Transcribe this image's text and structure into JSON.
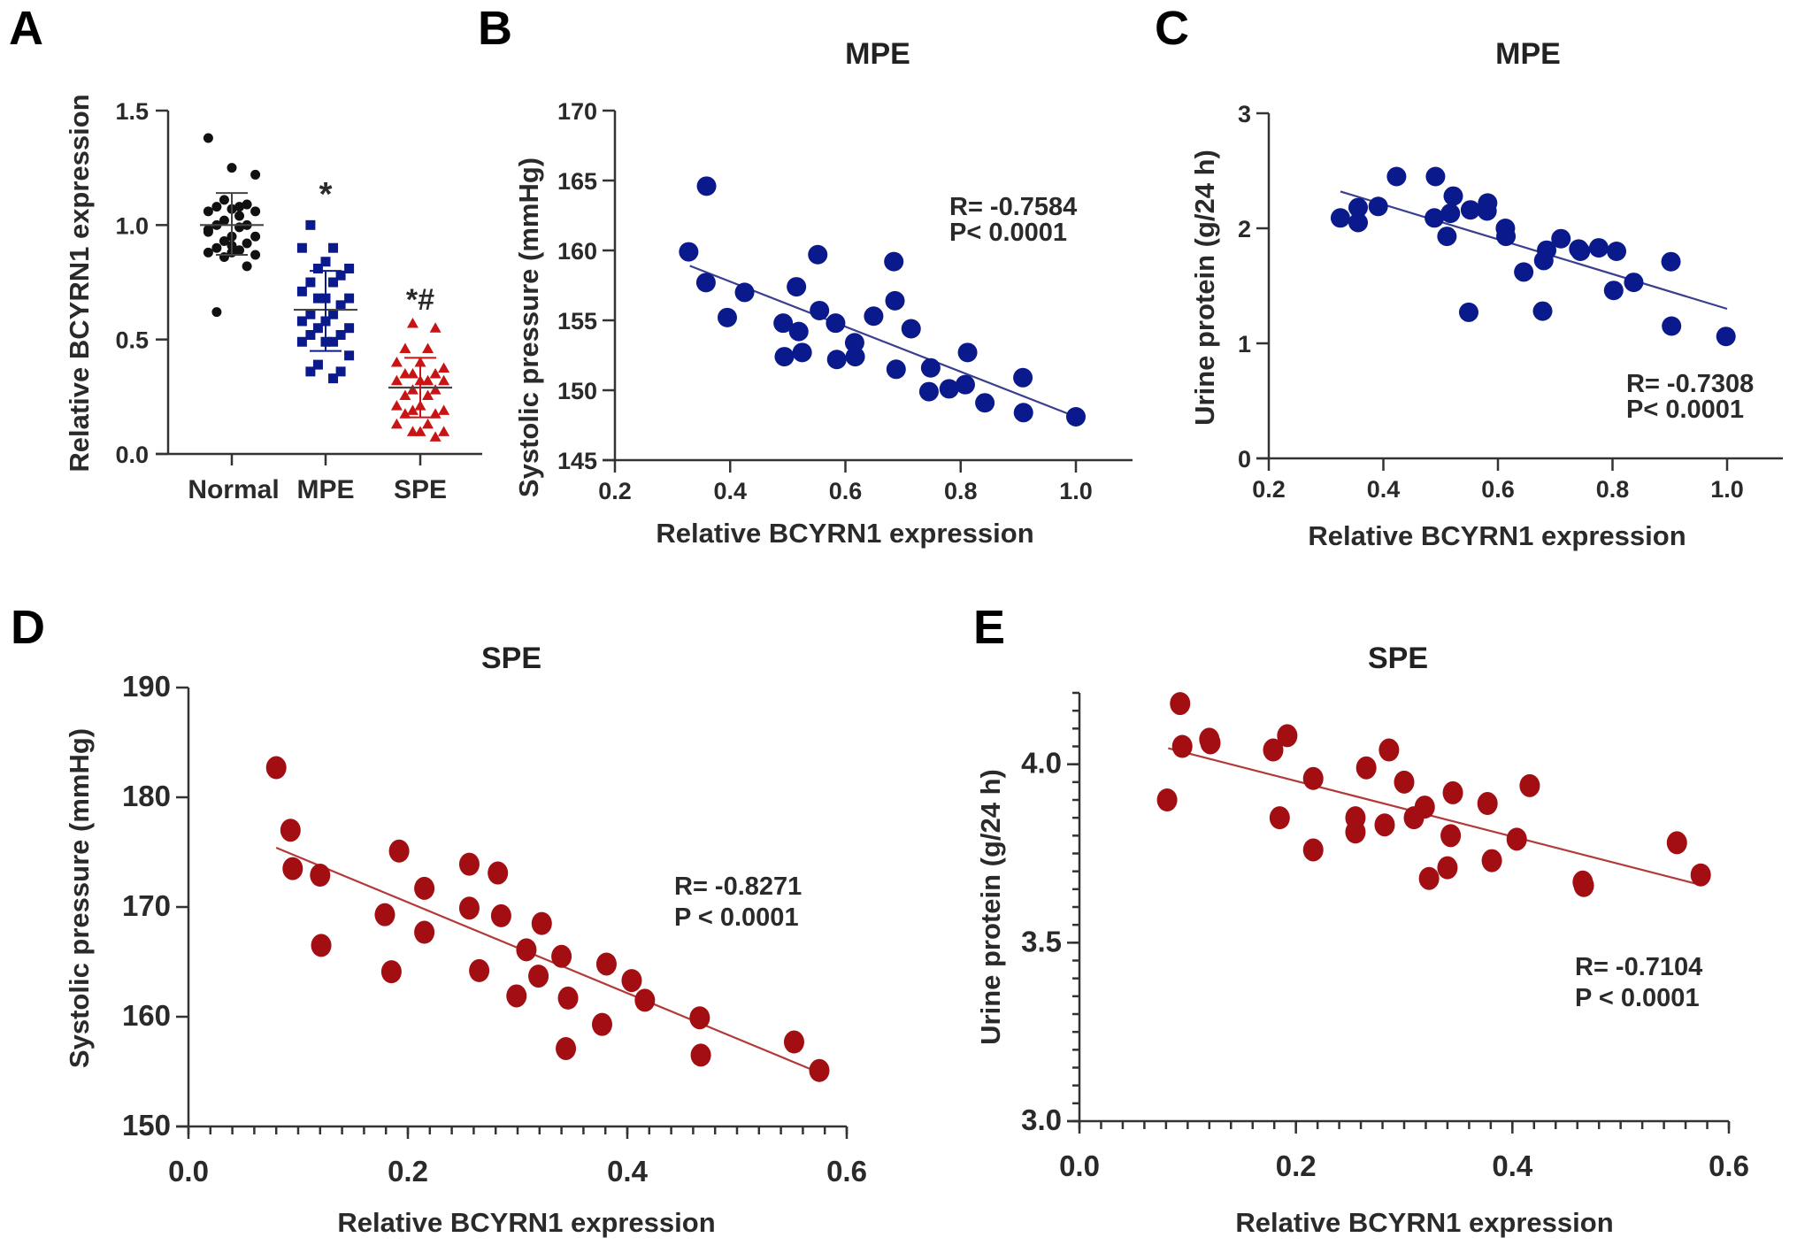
{
  "figure": {
    "colors": {
      "normal": "#111111",
      "mpe": "#0a1a8c",
      "spe_scatter_panel_a": "#c81414",
      "spe": "#a30e12",
      "mpe_fit": "#3a3f8f",
      "spe_fit": "#b23a3a",
      "axis": "#333333"
    }
  },
  "chart_data": [
    {
      "panel": "A",
      "type": "scatter",
      "subtype": "dot-plot-with-mean-sd",
      "title": "",
      "xlabel": "",
      "ylabel": "Relative BCYRN1 expression",
      "ylim": [
        0,
        1.5
      ],
      "yticks": [
        "0.0",
        "0.5",
        "1.0",
        "1.5"
      ],
      "categories": [
        "Normal",
        "MPE",
        "SPE"
      ],
      "annotations": [
        "",
        "*",
        "*#"
      ],
      "grid": false,
      "series": [
        {
          "name": "Normal",
          "marker": "circle",
          "mean": 1.0,
          "sd_low": 0.87,
          "sd_high": 1.14,
          "values": [
            1.38,
            1.25,
            1.22,
            1.11,
            1.09,
            1.08,
            1.08,
            1.06,
            1.07,
            1.06,
            1.02,
            1.0,
            1.0,
            0.99,
            0.98,
            0.95,
            0.95,
            0.93,
            0.92,
            0.9,
            0.89,
            0.88,
            0.88,
            0.87,
            0.86,
            0.82,
            0.62,
            1.04,
            0.97,
            0.91
          ]
        },
        {
          "name": "MPE",
          "marker": "square",
          "mean": 0.63,
          "sd_low": 0.45,
          "sd_high": 0.8,
          "values": [
            1.0,
            0.9,
            0.9,
            0.84,
            0.81,
            0.81,
            0.78,
            0.75,
            0.75,
            0.71,
            0.68,
            0.68,
            0.68,
            0.65,
            0.61,
            0.61,
            0.58,
            0.58,
            0.55,
            0.55,
            0.52,
            0.52,
            0.49,
            0.49,
            0.49,
            0.43,
            0.39,
            0.36,
            0.36,
            0.33
          ]
        },
        {
          "name": "SPE",
          "marker": "triangle",
          "mean": 0.29,
          "sd_low": 0.16,
          "sd_high": 0.42,
          "values": [
            0.57,
            0.55,
            0.46,
            0.46,
            0.4,
            0.4,
            0.375,
            0.35,
            0.35,
            0.35,
            0.32,
            0.32,
            0.32,
            0.32,
            0.28,
            0.28,
            0.255,
            0.255,
            0.21,
            0.21,
            0.19,
            0.19,
            0.175,
            0.175,
            0.13,
            0.13,
            0.097,
            0.097,
            0.097,
            0.074
          ]
        }
      ]
    },
    {
      "panel": "B",
      "type": "scatter",
      "title": "MPE",
      "xlabel": "Relative BCYRN1 expression",
      "ylabel": "Systolic pressure (mmHg)",
      "xlim": [
        0.2,
        1.0
      ],
      "ylim": [
        145,
        170
      ],
      "xticks": [
        "0.2",
        "0.4",
        "0.6",
        "0.8",
        "1.0"
      ],
      "yticks": [
        "145",
        "150",
        "155",
        "160",
        "165",
        "170"
      ],
      "stats": [
        "R= -0.7584",
        "P< 0.0001"
      ],
      "stats_position": "top-right",
      "grid": false,
      "fit_line": {
        "x": [
          0.33,
          1.0
        ],
        "y": [
          158.9,
          148.1
        ]
      },
      "points": [
        [
          0.359,
          164.6
        ],
        [
          0.328,
          159.9
        ],
        [
          0.358,
          157.7
        ],
        [
          0.425,
          157.0
        ],
        [
          0.395,
          155.2
        ],
        [
          0.492,
          154.8
        ],
        [
          0.519,
          154.2
        ],
        [
          0.494,
          152.4
        ],
        [
          0.525,
          152.7
        ],
        [
          0.515,
          157.4
        ],
        [
          0.552,
          159.7
        ],
        [
          0.555,
          155.7
        ],
        [
          0.583,
          154.8
        ],
        [
          0.585,
          152.2
        ],
        [
          0.616,
          153.4
        ],
        [
          0.617,
          152.4
        ],
        [
          0.649,
          155.3
        ],
        [
          0.684,
          159.2
        ],
        [
          0.686,
          156.4
        ],
        [
          0.714,
          154.4
        ],
        [
          0.688,
          151.5
        ],
        [
          0.748,
          151.6
        ],
        [
          0.745,
          149.9
        ],
        [
          0.78,
          150.1
        ],
        [
          0.808,
          150.4
        ],
        [
          0.812,
          152.7
        ],
        [
          0.842,
          149.1
        ],
        [
          0.908,
          150.9
        ],
        [
          0.909,
          148.4
        ],
        [
          1.0,
          148.1
        ]
      ]
    },
    {
      "panel": "C",
      "type": "scatter",
      "title": "MPE",
      "xlabel": "Relative BCYRN1 expression",
      "ylabel": "Urine protein (g/24 h)",
      "xlim": [
        0.2,
        1.0
      ],
      "ylim": [
        0,
        3
      ],
      "xticks": [
        "0.2",
        "0.4",
        "0.6",
        "0.8",
        "1.0"
      ],
      "yticks": [
        "0",
        "1",
        "2",
        "3"
      ],
      "stats": [
        "R= -0.7308",
        "P< 0.0001"
      ],
      "stats_position": "bottom-right",
      "grid": false,
      "fit_line": {
        "x": [
          0.325,
          1.0
        ],
        "y": [
          2.32,
          1.3
        ]
      },
      "points": [
        [
          0.325,
          2.09
        ],
        [
          0.356,
          2.18
        ],
        [
          0.356,
          2.05
        ],
        [
          0.391,
          2.19
        ],
        [
          0.423,
          2.45
        ],
        [
          0.491,
          2.45
        ],
        [
          0.489,
          2.09
        ],
        [
          0.522,
          2.28
        ],
        [
          0.517,
          2.13
        ],
        [
          0.511,
          1.93
        ],
        [
          0.552,
          2.16
        ],
        [
          0.582,
          2.22
        ],
        [
          0.581,
          2.15
        ],
        [
          0.549,
          1.27
        ],
        [
          0.613,
          2.0
        ],
        [
          0.614,
          1.93
        ],
        [
          0.645,
          1.62
        ],
        [
          0.685,
          1.81
        ],
        [
          0.68,
          1.72
        ],
        [
          0.678,
          1.28
        ],
        [
          0.71,
          1.91
        ],
        [
          0.741,
          1.82
        ],
        [
          0.744,
          1.8
        ],
        [
          0.776,
          1.83
        ],
        [
          0.807,
          1.8
        ],
        [
          0.802,
          1.46
        ],
        [
          0.837,
          1.53
        ],
        [
          0.902,
          1.71
        ],
        [
          0.903,
          1.15
        ],
        [
          0.998,
          1.06
        ]
      ]
    },
    {
      "panel": "D",
      "type": "scatter",
      "title": "SPE",
      "xlabel": "Relative BCYRN1 expression",
      "ylabel": "Systolic pressure (mmHg)",
      "xlim": [
        0.0,
        0.6
      ],
      "ylim": [
        150,
        190
      ],
      "xticks": [
        "0.0",
        "0.2",
        "0.4",
        "0.6"
      ],
      "yticks": [
        "150",
        "160",
        "170",
        "180",
        "190"
      ],
      "x_minor_step": 0.02,
      "stats": [
        "R= -0.8271",
        "P < 0.0001"
      ],
      "stats_position": "right",
      "grid": false,
      "fit_line": {
        "x": [
          0.08,
          0.575
        ],
        "y": [
          175.4,
          154.9
        ]
      },
      "points": [
        [
          0.08,
          182.7
        ],
        [
          0.093,
          177.0
        ],
        [
          0.095,
          173.5
        ],
        [
          0.12,
          172.9
        ],
        [
          0.121,
          166.5
        ],
        [
          0.179,
          169.3
        ],
        [
          0.185,
          164.1
        ],
        [
          0.192,
          175.1
        ],
        [
          0.215,
          171.7
        ],
        [
          0.215,
          167.7
        ],
        [
          0.256,
          173.9
        ],
        [
          0.256,
          169.9
        ],
        [
          0.265,
          164.2
        ],
        [
          0.282,
          173.1
        ],
        [
          0.285,
          169.2
        ],
        [
          0.299,
          161.9
        ],
        [
          0.308,
          166.1
        ],
        [
          0.319,
          163.7
        ],
        [
          0.322,
          168.5
        ],
        [
          0.34,
          165.5
        ],
        [
          0.346,
          161.7
        ],
        [
          0.344,
          157.1
        ],
        [
          0.377,
          159.3
        ],
        [
          0.381,
          164.8
        ],
        [
          0.404,
          163.3
        ],
        [
          0.416,
          161.5
        ],
        [
          0.466,
          159.9
        ],
        [
          0.467,
          156.5
        ],
        [
          0.552,
          157.7
        ],
        [
          0.575,
          155.1
        ]
      ]
    },
    {
      "panel": "E",
      "type": "scatter",
      "title": "SPE",
      "xlabel": "Relative BCYRN1 expression",
      "ylabel": "Urine protein (g/24 h)",
      "xlim": [
        0.0,
        0.6
      ],
      "ylim": [
        3.0,
        4.2
      ],
      "xticks": [
        "0.0",
        "0.2",
        "0.4",
        "0.6"
      ],
      "yticks": [
        "3.0",
        "3.5",
        "4.0"
      ],
      "x_minor_step": 0.02,
      "y_minor_step": 0.05,
      "stats": [
        "R= -0.7104",
        "P < 0.0001"
      ],
      "stats_position": "right",
      "grid": false,
      "fit_line": {
        "x": [
          0.082,
          0.57
        ],
        "y": [
          4.045,
          3.665
        ]
      },
      "points": [
        [
          0.081,
          3.9
        ],
        [
          0.093,
          4.17
        ],
        [
          0.095,
          4.05
        ],
        [
          0.12,
          4.07
        ],
        [
          0.121,
          4.06
        ],
        [
          0.179,
          4.04
        ],
        [
          0.192,
          4.08
        ],
        [
          0.185,
          3.85
        ],
        [
          0.216,
          3.96
        ],
        [
          0.216,
          3.76
        ],
        [
          0.255,
          3.85
        ],
        [
          0.255,
          3.81
        ],
        [
          0.265,
          3.99
        ],
        [
          0.282,
          3.83
        ],
        [
          0.286,
          4.04
        ],
        [
          0.3,
          3.95
        ],
        [
          0.309,
          3.85
        ],
        [
          0.319,
          3.88
        ],
        [
          0.323,
          3.68
        ],
        [
          0.34,
          3.71
        ],
        [
          0.343,
          3.8
        ],
        [
          0.345,
          3.92
        ],
        [
          0.377,
          3.89
        ],
        [
          0.381,
          3.73
        ],
        [
          0.404,
          3.79
        ],
        [
          0.416,
          3.94
        ],
        [
          0.465,
          3.67
        ],
        [
          0.466,
          3.66
        ],
        [
          0.552,
          3.78
        ],
        [
          0.574,
          3.69
        ]
      ]
    }
  ]
}
